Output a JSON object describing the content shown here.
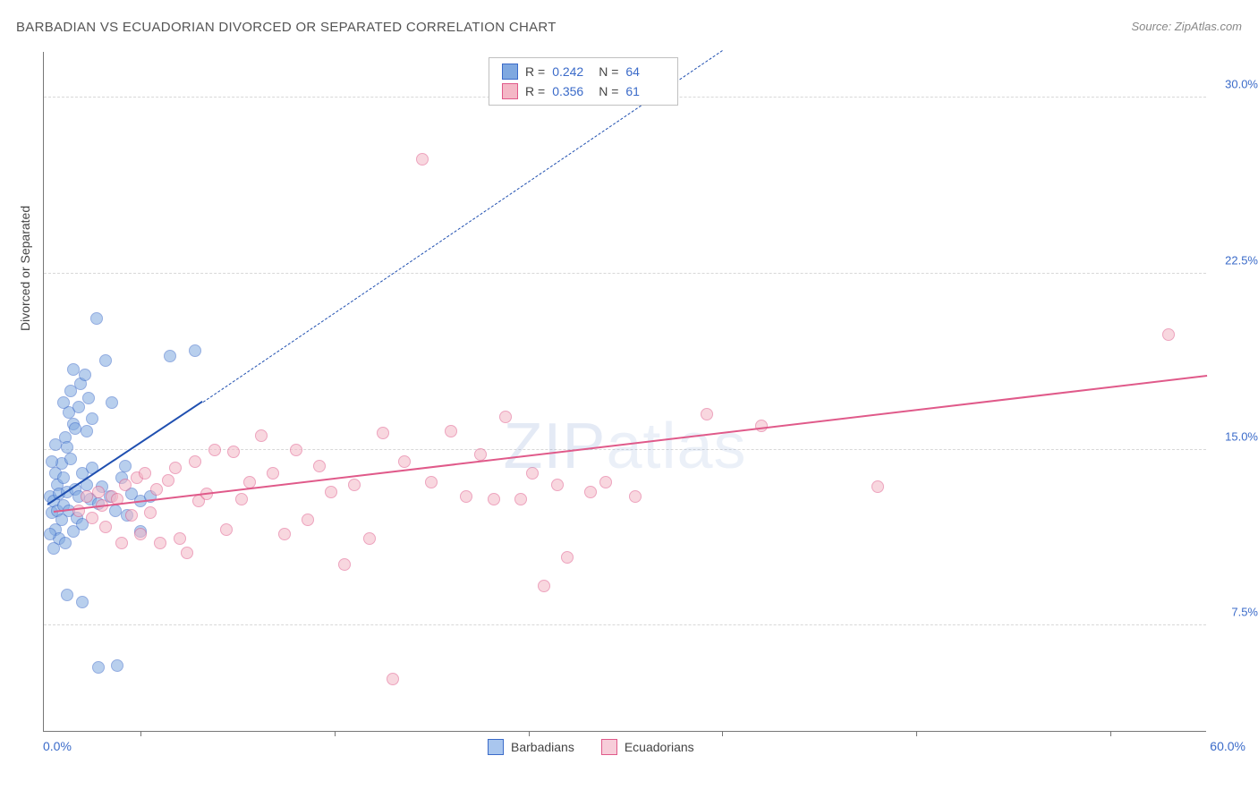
{
  "title": "BARBADIAN VS ECUADORIAN DIVORCED OR SEPARATED CORRELATION CHART",
  "source": "Source: ZipAtlas.com",
  "watermark": {
    "bold": "ZIP",
    "thin": "atlas"
  },
  "ylabel": "Divorced or Separated",
  "chart": {
    "type": "scatter",
    "xlim": [
      0,
      60
    ],
    "ylim": [
      3,
      32
    ],
    "xlim_labels": {
      "min": "0.0%",
      "max": "60.0%"
    },
    "xtick_positions": [
      5,
      15,
      25,
      35,
      45,
      55
    ],
    "background_color": "#ffffff",
    "grid_color": "#d8d8d8",
    "grid_y": [
      7.5,
      15.0,
      22.5,
      30.0
    ],
    "ytick_labels": [
      "7.5%",
      "15.0%",
      "22.5%",
      "30.0%"
    ],
    "marker_radius": 7,
    "marker_opacity": 0.55,
    "series": [
      {
        "name": "Barbadians",
        "color": "#7fa8e0",
        "stroke": "#3b6bc9",
        "R": "0.242",
        "N": "64",
        "points": [
          [
            0.3,
            13.0
          ],
          [
            0.4,
            12.3
          ],
          [
            0.5,
            12.8
          ],
          [
            0.6,
            11.6
          ],
          [
            0.6,
            14.0
          ],
          [
            0.7,
            12.4
          ],
          [
            0.7,
            13.5
          ],
          [
            0.8,
            13.1
          ],
          [
            0.8,
            11.2
          ],
          [
            0.9,
            14.4
          ],
          [
            0.9,
            12.0
          ],
          [
            1.0,
            13.8
          ],
          [
            1.0,
            12.6
          ],
          [
            1.1,
            15.5
          ],
          [
            1.1,
            11.0
          ],
          [
            1.2,
            15.1
          ],
          [
            1.2,
            13.2
          ],
          [
            1.3,
            16.6
          ],
          [
            1.3,
            12.4
          ],
          [
            1.4,
            14.6
          ],
          [
            1.4,
            17.5
          ],
          [
            1.5,
            11.5
          ],
          [
            1.5,
            16.1
          ],
          [
            1.6,
            13.3
          ],
          [
            1.6,
            15.9
          ],
          [
            1.7,
            12.1
          ],
          [
            1.8,
            16.8
          ],
          [
            1.8,
            13.0
          ],
          [
            1.9,
            17.8
          ],
          [
            2.0,
            14.0
          ],
          [
            2.0,
            11.8
          ],
          [
            2.1,
            18.2
          ],
          [
            2.2,
            13.5
          ],
          [
            2.3,
            17.2
          ],
          [
            2.4,
            12.9
          ],
          [
            2.5,
            14.2
          ],
          [
            2.5,
            16.3
          ],
          [
            2.7,
            20.6
          ],
          [
            2.8,
            12.7
          ],
          [
            3.0,
            13.4
          ],
          [
            3.2,
            18.8
          ],
          [
            3.4,
            13.0
          ],
          [
            3.5,
            17.0
          ],
          [
            3.7,
            12.4
          ],
          [
            4.0,
            13.8
          ],
          [
            4.2,
            14.3
          ],
          [
            4.5,
            13.1
          ],
          [
            5.0,
            12.8
          ],
          [
            5.5,
            13.0
          ],
          [
            1.2,
            8.8
          ],
          [
            2.0,
            8.5
          ],
          [
            2.8,
            5.7
          ],
          [
            3.8,
            5.8
          ],
          [
            4.3,
            12.2
          ],
          [
            5.0,
            11.5
          ],
          [
            6.5,
            19.0
          ],
          [
            7.8,
            19.2
          ],
          [
            2.2,
            15.8
          ],
          [
            1.5,
            18.4
          ],
          [
            1.0,
            17.0
          ],
          [
            0.6,
            15.2
          ],
          [
            0.4,
            14.5
          ],
          [
            0.3,
            11.4
          ],
          [
            0.5,
            10.8
          ]
        ],
        "trend": {
          "color": "#1f4fb0",
          "solid": {
            "x1": 0.2,
            "y1": 12.6,
            "x2": 8.2,
            "y2": 17.0
          },
          "dashed": {
            "x1": 8.2,
            "y1": 17.0,
            "x2": 35.0,
            "y2": 32.0
          }
        }
      },
      {
        "name": "Ecuadorians",
        "color": "#f4b7c6",
        "stroke": "#e05a8a",
        "R": "0.356",
        "N": "61",
        "points": [
          [
            1.8,
            12.4
          ],
          [
            2.2,
            13.0
          ],
          [
            2.5,
            12.1
          ],
          [
            2.8,
            13.2
          ],
          [
            3.0,
            12.6
          ],
          [
            3.2,
            11.7
          ],
          [
            3.5,
            13.0
          ],
          [
            3.8,
            12.9
          ],
          [
            4.0,
            11.0
          ],
          [
            4.2,
            13.5
          ],
          [
            4.5,
            12.2
          ],
          [
            4.8,
            13.8
          ],
          [
            5.0,
            11.4
          ],
          [
            5.2,
            14.0
          ],
          [
            5.5,
            12.3
          ],
          [
            5.8,
            13.3
          ],
          [
            6.0,
            11.0
          ],
          [
            6.4,
            13.7
          ],
          [
            6.8,
            14.2
          ],
          [
            7.0,
            11.2
          ],
          [
            7.4,
            10.6
          ],
          [
            7.8,
            14.5
          ],
          [
            8.0,
            12.8
          ],
          [
            8.4,
            13.1
          ],
          [
            8.8,
            15.0
          ],
          [
            9.4,
            11.6
          ],
          [
            9.8,
            14.9
          ],
          [
            10.2,
            12.9
          ],
          [
            10.6,
            13.6
          ],
          [
            11.2,
            15.6
          ],
          [
            11.8,
            14.0
          ],
          [
            12.4,
            11.4
          ],
          [
            13.0,
            15.0
          ],
          [
            13.6,
            12.0
          ],
          [
            14.2,
            14.3
          ],
          [
            14.8,
            13.2
          ],
          [
            15.5,
            10.1
          ],
          [
            16.0,
            13.5
          ],
          [
            16.8,
            11.2
          ],
          [
            17.5,
            15.7
          ],
          [
            18.0,
            5.2
          ],
          [
            18.6,
            14.5
          ],
          [
            19.5,
            27.4
          ],
          [
            20.0,
            13.6
          ],
          [
            21.0,
            15.8
          ],
          [
            21.8,
            13.0
          ],
          [
            22.5,
            14.8
          ],
          [
            23.2,
            12.9
          ],
          [
            23.8,
            16.4
          ],
          [
            24.6,
            12.9
          ],
          [
            25.2,
            14.0
          ],
          [
            25.8,
            9.2
          ],
          [
            26.5,
            13.5
          ],
          [
            27.0,
            10.4
          ],
          [
            28.2,
            13.2
          ],
          [
            29.0,
            13.6
          ],
          [
            30.5,
            13.0
          ],
          [
            34.2,
            16.5
          ],
          [
            43.0,
            13.4
          ],
          [
            58.0,
            19.9
          ],
          [
            37.0,
            16.0
          ]
        ],
        "trend": {
          "color": "#e05a8a",
          "solid": {
            "x1": 0.5,
            "y1": 12.3,
            "x2": 60.0,
            "y2": 18.1
          }
        }
      }
    ]
  },
  "legend_bottom": [
    {
      "label": "Barbadians",
      "fill": "#a9c6ee",
      "stroke": "#3b6bc9"
    },
    {
      "label": "Ecuadorians",
      "fill": "#f7cdd9",
      "stroke": "#e05a8a"
    }
  ]
}
